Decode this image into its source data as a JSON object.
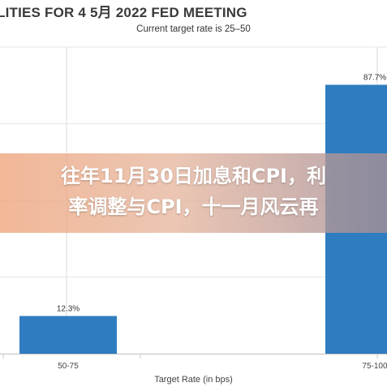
{
  "chart_data": {
    "type": "bar",
    "title": "LITIES FOR 4 5月 2022 FED MEETING",
    "subtitle": "Current target rate is 25–50",
    "xlabel": "Target Rate (in bps)",
    "ylabel": "",
    "categories": [
      "50-75",
      "75-100"
    ],
    "values": [
      12.3,
      87.7
    ],
    "data_labels": [
      "12.3%",
      "87.7%"
    ],
    "ylim": [
      0,
      100
    ],
    "grid": true,
    "bar_color": "#2f7dc0"
  },
  "overlay": {
    "line1": "往年11月30日加息和CPI，利",
    "line2": "率调整与CPI，十一月风云再"
  }
}
